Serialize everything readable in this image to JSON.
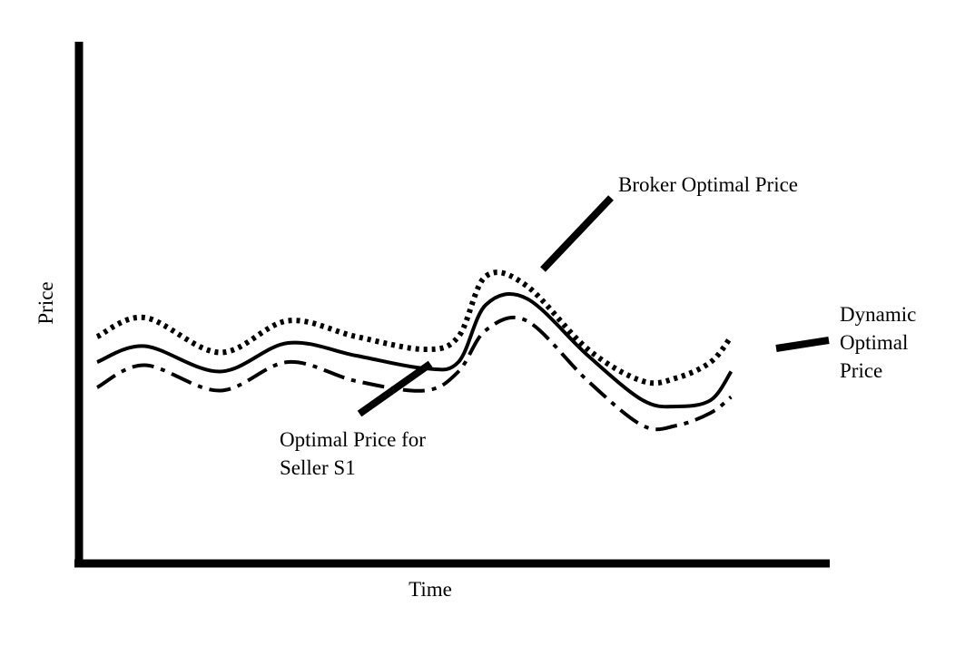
{
  "chart_data": {
    "type": "line",
    "xlabel": "Time",
    "ylabel": "Price",
    "xlim": [
      0,
      100
    ],
    "ylim": [
      0,
      100
    ],
    "grid": false,
    "series": [
      {
        "name": "Broker Optimal Price",
        "style": "dotted",
        "x": [
          0,
          7,
          18,
          28,
          38,
          48,
          53,
          57,
          63,
          72,
          80,
          85,
          90,
          93
        ],
        "y": [
          47,
          50,
          44.5,
          49.5,
          47,
          45,
          47,
          56.5,
          55,
          45,
          40,
          40.5,
          43,
          47
        ]
      },
      {
        "name": "Dynamic Optimal Price",
        "style": "solid",
        "x": [
          0,
          7,
          18,
          28,
          38,
          48,
          53,
          57,
          63,
          72,
          80,
          85,
          90,
          93
        ],
        "y": [
          43,
          45.5,
          41.5,
          46,
          44,
          42,
          43,
          52,
          53,
          44,
          37,
          36,
          37,
          41.5
        ]
      },
      {
        "name": "Optimal Price for Seller S1",
        "style": "dashdot",
        "x": [
          0,
          7,
          18,
          28,
          38,
          48,
          53,
          57,
          63,
          72,
          80,
          85,
          90,
          93
        ],
        "y": [
          39,
          42.5,
          38.5,
          43,
          40,
          38.5,
          41.5,
          48,
          49.5,
          40,
          33,
          33,
          35,
          37.5
        ]
      }
    ],
    "annotations": [
      {
        "text": "Broker Optimal Price",
        "series": 0
      },
      {
        "text": [
          "Dynamic",
          "Optimal",
          "Price"
        ],
        "series": 1
      },
      {
        "text": [
          "Optimal Price for",
          "Seller S1"
        ],
        "series": 2
      }
    ]
  }
}
